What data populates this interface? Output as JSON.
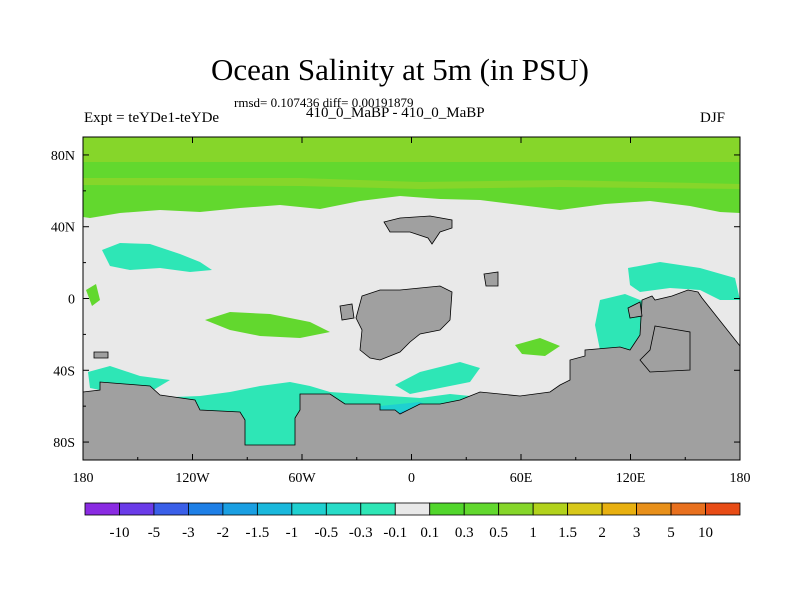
{
  "chart_data": {
    "type": "heatmap",
    "title": "Ocean Salinity at 5m (in PSU)",
    "stats_line": "rmsd= 0.107436 diff= 0.00191879",
    "left_label": "Expt = teYDe1-teYDe",
    "subtitle": "410_0_MaBP - 410_0_MaBP",
    "right_label": "DJF",
    "x_range": [
      -180,
      180
    ],
    "y_range": [
      -90,
      90
    ],
    "x_ticks": [
      {
        "value": -180,
        "label": "180"
      },
      {
        "value": -120,
        "label": "120W"
      },
      {
        "value": -60,
        "label": "60W"
      },
      {
        "value": 0,
        "label": "0"
      },
      {
        "value": 60,
        "label": "60E"
      },
      {
        "value": 120,
        "label": "120E"
      },
      {
        "value": 180,
        "label": "180"
      }
    ],
    "y_ticks": [
      {
        "value": 80,
        "label": "80N"
      },
      {
        "value": 40,
        "label": "40N"
      },
      {
        "value": 0,
        "label": "0"
      },
      {
        "value": -40,
        "label": "40S"
      },
      {
        "value": -80,
        "label": "80S"
      }
    ],
    "colorbar": {
      "colors": [
        "#8a2be2",
        "#6a3be8",
        "#3a5fe8",
        "#1e7fe6",
        "#1a9fe2",
        "#1ab8dc",
        "#1fd0d0",
        "#28dcc8",
        "#2ee6b6",
        "#e9e9e9",
        "#52d62c",
        "#62d82e",
        "#86d62a",
        "#b2d21c",
        "#d8c81a",
        "#e8b010",
        "#e8901a",
        "#e8701e",
        "#e84c16"
      ],
      "labels": [
        "-10",
        "-5",
        "-3",
        "-2",
        "-1.5",
        "-1",
        "-0.5",
        "-0.3",
        "-0.1",
        "0.1",
        "0.3",
        "0.5",
        "1",
        "1.5",
        "2",
        "3",
        "5",
        "10"
      ]
    },
    "colors": {
      "land": "#a0a0a0",
      "ocean_neutral": "#e9e9e9",
      "positive_low": "#62d82e",
      "positive_mid": "#86d62a",
      "negative_low": "#2ee6b6",
      "negative_mid": "#1fd0d0",
      "negative_high": "#1ab8dc"
    }
  }
}
